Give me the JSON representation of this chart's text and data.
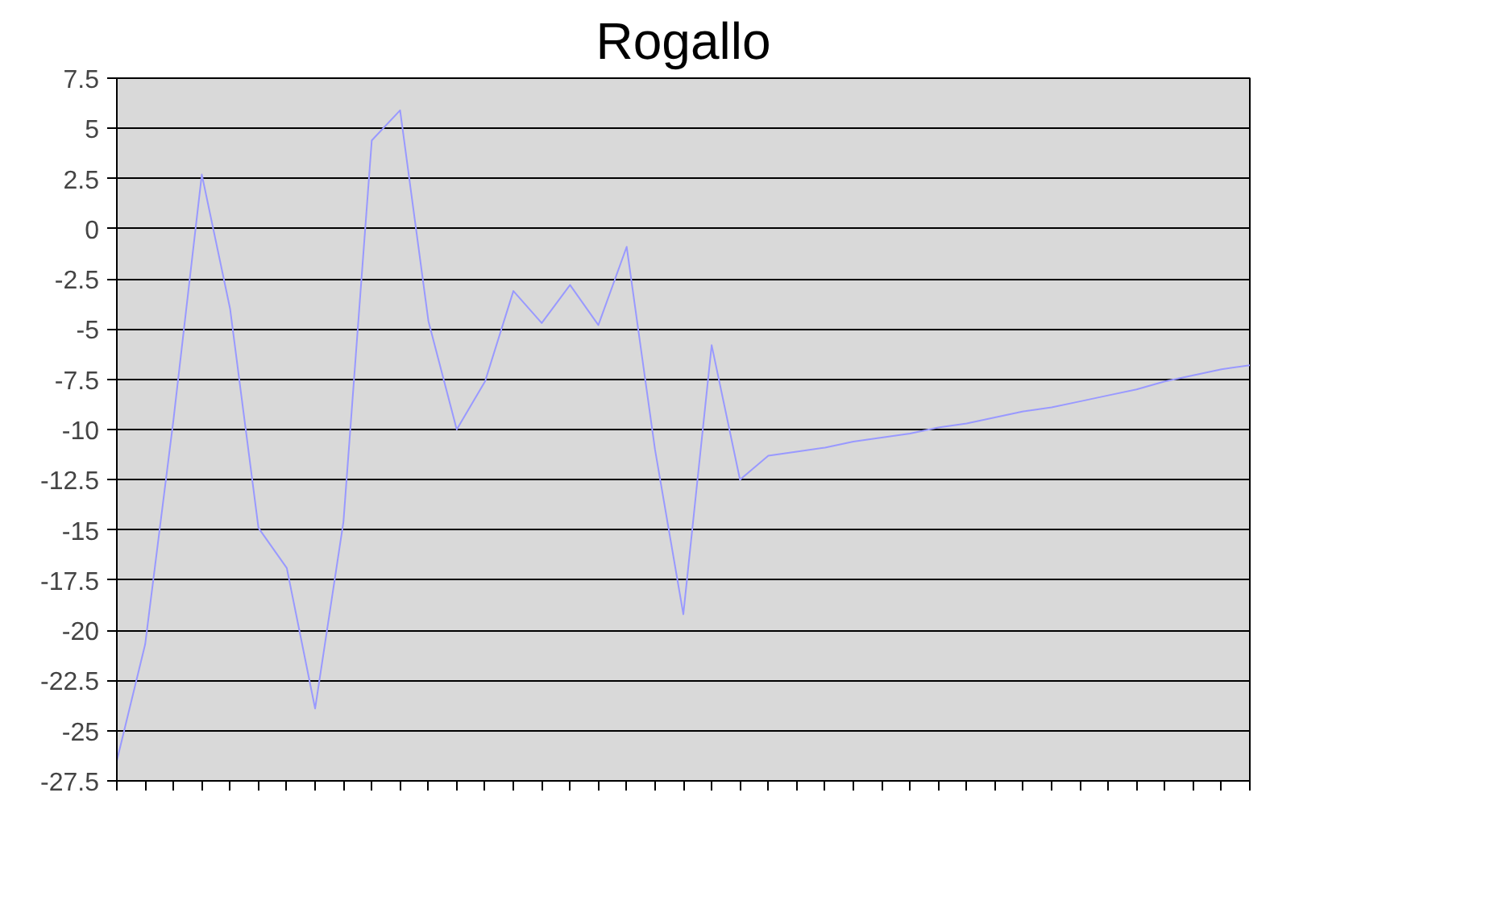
{
  "chart_data": {
    "type": "line",
    "title": "Rogallo",
    "categories": [
      null,
      null,
      null,
      null,
      null,
      null,
      null,
      null,
      null,
      null,
      null,
      null,
      null,
      null,
      null,
      null,
      null,
      null,
      null,
      null,
      null,
      null,
      null,
      null,
      null,
      null,
      null,
      null,
      null,
      null,
      null,
      null,
      null,
      null,
      null,
      null,
      null,
      null,
      null,
      null,
      null
    ],
    "series": [
      {
        "color": "#9999ff",
        "values": [
          -26.5,
          -20.7,
          -9.5,
          2.7,
          -4,
          -14.9,
          -16.9,
          -23.9,
          -14.6,
          4.4,
          5.9,
          -4.6,
          -10,
          -7.6,
          -3.1,
          -4.7,
          -2.8,
          -4.8,
          -0.9,
          -11,
          -19.2,
          -5.8,
          -12.5,
          -11.3,
          -11.1,
          -10.9,
          -10.6,
          -10.4,
          -10.2,
          -9.9,
          -9.7,
          -9.4,
          -9.1,
          -8.9,
          -8.6,
          -8.3,
          -8,
          -7.6,
          -7.3,
          -7,
          -6.8
        ]
      }
    ],
    "ylim": [
      -27.5,
      7.5
    ],
    "yticks": [
      -27.5,
      -25,
      -22.5,
      -20,
      -17.5,
      -15,
      -12.5,
      -10,
      -7.5,
      -5,
      -2.5,
      0,
      2.5,
      5,
      7.5
    ],
    "grid": "y",
    "tick_labels": "y",
    "marker": "none",
    "line_style": "solid"
  }
}
